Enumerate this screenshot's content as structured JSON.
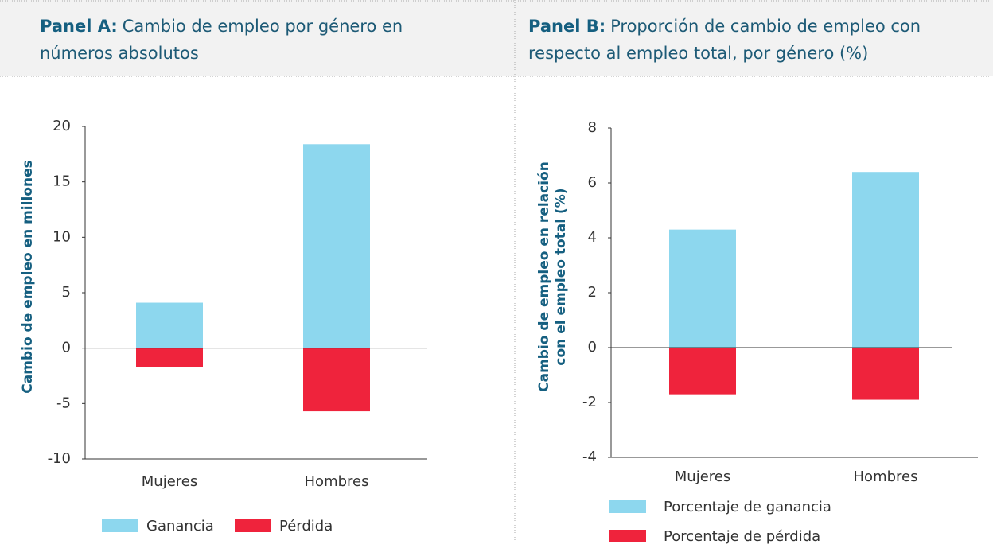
{
  "chart_data": [
    {
      "type": "bar",
      "panel_label": "Panel A:",
      "title": [
        "Cambio de empleo por género en",
        "números absolutos"
      ],
      "ylabel": [
        "Cambio de empleo en millones"
      ],
      "categories": [
        "Mujeres",
        "Hombres"
      ],
      "series": [
        {
          "name": "Ganancia",
          "color": "#8dd7ee",
          "values": [
            4.1,
            18.4
          ]
        },
        {
          "name": "Pérdida",
          "color": "#ef233c",
          "values": [
            -1.7,
            -5.7
          ]
        }
      ],
      "ylim": [
        -10,
        20
      ],
      "yticks": [
        -10,
        -5,
        0,
        5,
        10,
        15,
        20
      ],
      "legend": "bottom-horizontal"
    },
    {
      "type": "bar",
      "panel_label": "Panel B:",
      "title": [
        "Proporción de cambio de empleo con",
        "respecto al empleo total, por género (%)"
      ],
      "ylabel": [
        "Cambio de empleo en relación",
        "con el empleo total (%)"
      ],
      "categories": [
        "Mujeres",
        "Hombres"
      ],
      "series": [
        {
          "name": "Porcentaje de ganancia",
          "color": "#8dd7ee",
          "values": [
            4.3,
            6.4
          ]
        },
        {
          "name": "Porcentaje de pérdida",
          "color": "#ef233c",
          "values": [
            -1.7,
            -1.9
          ]
        }
      ],
      "ylim": [
        -4,
        8
      ],
      "yticks": [
        -4,
        -2,
        0,
        2,
        4,
        6,
        8
      ],
      "legend": "bottom-vertical"
    }
  ]
}
